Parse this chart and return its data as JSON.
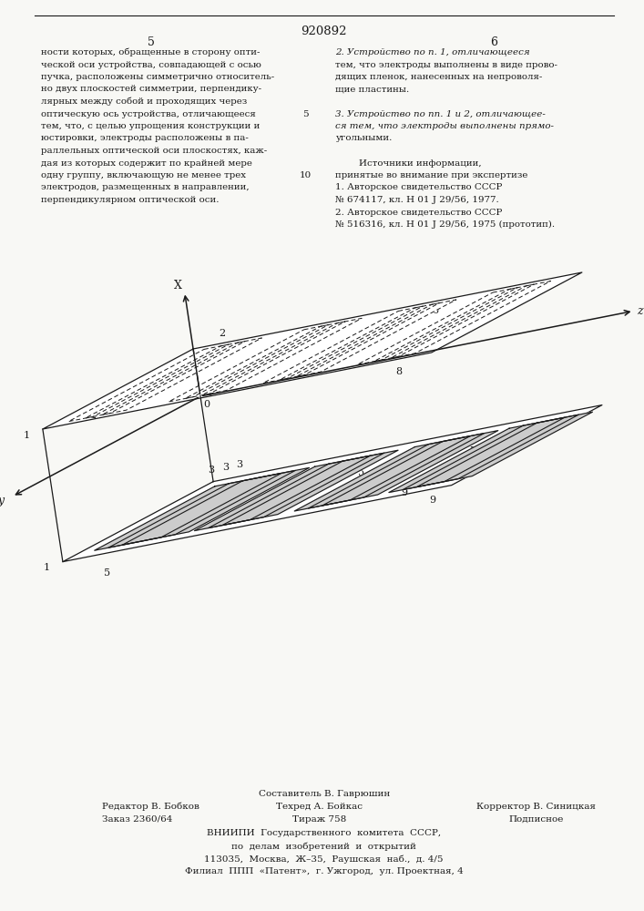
{
  "patent_number": "920892",
  "page_left": "5",
  "page_right": "6",
  "bg_color": "#f8f8f5",
  "text_color": "#1a1a1a",
  "line_color": "#1a1a1a",
  "footer_composer": "Составитель В. Гаврюшин",
  "footer_editor": "Редактор В. Бобков",
  "footer_tech": "Техред А. Бойкас",
  "footer_corrector": "Корректор В. Синицкая",
  "footer_order": "Заказ 2360/64",
  "footer_circulation": "Тираж 758",
  "footer_signed": "Подписное",
  "footer_org": "ВНИИПИ  Государственного  комитета  СССР,",
  "footer_dept": "по  делам  изобретений  и  открытий",
  "footer_addr1": "113035,  Москва,  Ж–35,  Раушская  наб.,  д. 4/5",
  "footer_addr2": "Филиал  ППП  «Патент»,  г. Ужгород,  ул. Проектная, 4"
}
